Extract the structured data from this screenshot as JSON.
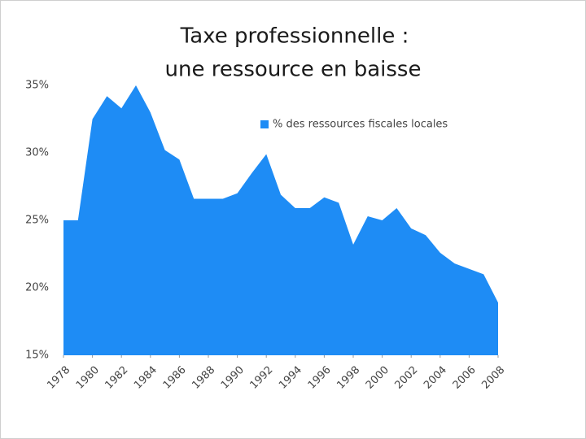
{
  "chart_data": {
    "type": "area",
    "title": "Taxe professionnelle  :",
    "subtitle": "une ressource en baisse",
    "x": [
      1978,
      1979,
      1980,
      1981,
      1982,
      1983,
      1984,
      1985,
      1986,
      1987,
      1988,
      1989,
      1990,
      1991,
      1992,
      1993,
      1994,
      1995,
      1996,
      1997,
      1998,
      1999,
      2000,
      2001,
      2002,
      2003,
      2004,
      2005,
      2006,
      2007,
      2008
    ],
    "series": [
      {
        "name": "% des ressources fiscales locales",
        "color": "#1e8cf5",
        "values": [
          25,
          25,
          32.5,
          34.2,
          33.3,
          35,
          33,
          30.2,
          29.5,
          26.6,
          26.6,
          26.6,
          27,
          28.5,
          29.9,
          26.9,
          25.9,
          25.9,
          26.7,
          26.3,
          23.2,
          25.3,
          25,
          25.9,
          24.4,
          23.9,
          22.6,
          21.8,
          21.4,
          21,
          18.9
        ]
      }
    ],
    "xlim": [
      1978,
      2008
    ],
    "xticks": [
      1978,
      1980,
      1982,
      1984,
      1986,
      1988,
      1990,
      1992,
      1994,
      1996,
      1998,
      2000,
      2002,
      2004,
      2006,
      2008
    ],
    "ylim": [
      15,
      35
    ],
    "yticks": [
      {
        "value": 15,
        "label": "15%"
      },
      {
        "value": 20,
        "label": "20%"
      },
      {
        "value": 25,
        "label": "25%"
      },
      {
        "value": 30,
        "label": "30%"
      },
      {
        "value": 35,
        "label": "35%"
      }
    ],
    "legend": "upper right"
  }
}
